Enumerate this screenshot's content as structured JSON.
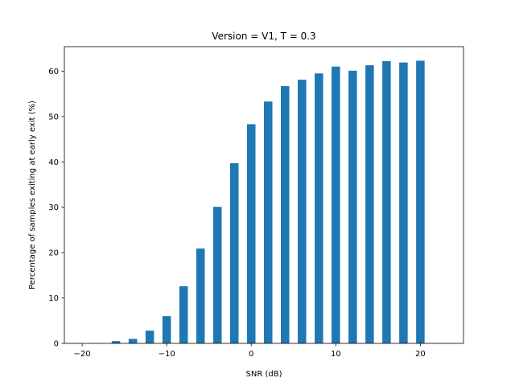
{
  "chart_data": {
    "type": "bar",
    "title": "Version = V1, T = 0.3",
    "xlabel": "SNR (dB)",
    "ylabel": "Percentage of samples exiting at early exit (%)",
    "x": [
      -20,
      -18,
      -16,
      -14,
      -12,
      -10,
      -8,
      -6,
      -4,
      -2,
      0,
      2,
      4,
      6,
      8,
      10,
      12,
      14,
      16,
      18,
      20
    ],
    "values": [
      0,
      0,
      0.5,
      1.0,
      2.8,
      6.0,
      12.6,
      20.9,
      30.1,
      39.7,
      48.3,
      53.3,
      56.7,
      58.1,
      59.5,
      61.0,
      60.1,
      61.3,
      62.2,
      61.9,
      62.3
    ],
    "xlim": [
      -22.1,
      25.1
    ],
    "ylim": [
      0,
      65.4
    ],
    "xticks": [
      -20,
      -10,
      0,
      10,
      20
    ],
    "xtick_labels": [
      "−20",
      "−10",
      "0",
      "10",
      "20"
    ],
    "yticks": [
      0,
      10,
      20,
      30,
      40,
      50,
      60
    ],
    "ytick_labels": [
      "0",
      "10",
      "20",
      "30",
      "40",
      "50",
      "60"
    ],
    "bar_width": 1.0,
    "bar_color": "#1f77b4",
    "grid": false,
    "legend": false
  }
}
